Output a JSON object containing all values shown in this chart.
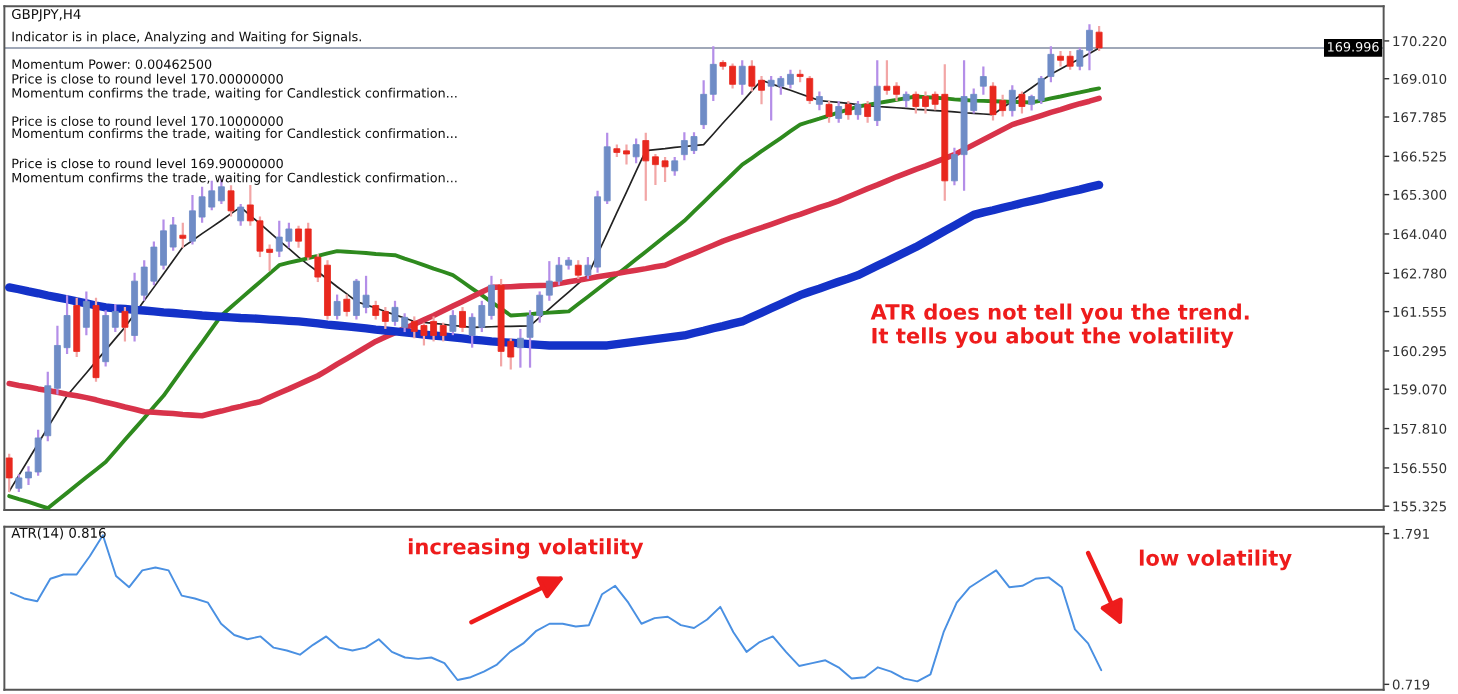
{
  "chart_data": [
    {
      "type": "candlestick",
      "title": "GBPJPY,H4",
      "annotations": [
        "Indicator is in place, Analyzing and Waiting for Signals.",
        "Momentum Power: 0.00462500",
        "Price is close to round level 170.00000000",
        "Momentum confirms the trade, waiting for Candlestick confirmation...",
        "Price is close to round level 170.10000000",
        "Momentum confirms the trade, waiting for Candlestick confirmation...",
        "Price is close to round level 169.90000000",
        "Momentum confirms the trade, waiting for Candlestick confirmation...",
        "ATR does not tell you the trend.\nIt tells you about the volatility"
      ],
      "categories": [
        null,
        null,
        null,
        null,
        null,
        null,
        null,
        null,
        null,
        null,
        null,
        null,
        null,
        null,
        null,
        null,
        null,
        null,
        null,
        null,
        null,
        null,
        null,
        null,
        null,
        null,
        null,
        null,
        null,
        null,
        null,
        null,
        null,
        null,
        null,
        null,
        null,
        null,
        null,
        null,
        null,
        null,
        null,
        null,
        null,
        null,
        null,
        null,
        null,
        null,
        null,
        null,
        null,
        null,
        null,
        null,
        null,
        null,
        null,
        null,
        null,
        null,
        null,
        null,
        null,
        null,
        null,
        null,
        null,
        null,
        null,
        null,
        null,
        null,
        null,
        null,
        null,
        null,
        null,
        null,
        null,
        null,
        null,
        null,
        null,
        null,
        null,
        null,
        null,
        null,
        null,
        null,
        null,
        null,
        null,
        null,
        null,
        null,
        null,
        null,
        null,
        null,
        null,
        null,
        null,
        null,
        null,
        null,
        null,
        null,
        null,
        null,
        null,
        null,
        null,
        null,
        null,
        null,
        null,
        null,
        null,
        null,
        null,
        null,
        null,
        null,
        null,
        null,
        null,
        null,
        null,
        null,
        null,
        null,
        null,
        null,
        null,
        null,
        null,
        null,
        null,
        null,
        null
      ],
      "ohlc": [
        [
          156.87,
          157.0,
          155.78,
          156.23
        ],
        [
          155.9,
          156.35,
          155.78,
          156.23
        ],
        [
          156.23,
          156.6,
          156.0,
          156.42
        ],
        [
          156.42,
          157.77,
          156.3,
          157.51
        ],
        [
          157.58,
          159.63,
          157.4,
          159.18
        ],
        [
          159.1,
          161.1,
          158.9,
          160.47
        ],
        [
          160.4,
          162.08,
          160.2,
          161.43
        ],
        [
          161.75,
          162.0,
          160.1,
          160.28
        ],
        [
          161.05,
          162.2,
          160.8,
          161.88
        ],
        [
          161.75,
          162.0,
          159.31,
          159.44
        ],
        [
          159.95,
          161.6,
          159.8,
          161.43
        ],
        [
          161.05,
          161.8,
          160.9,
          161.56
        ],
        [
          161.56,
          161.7,
          160.6,
          161.05
        ],
        [
          160.79,
          162.8,
          160.6,
          162.53
        ],
        [
          162.08,
          163.2,
          161.9,
          162.98
        ],
        [
          162.53,
          163.8,
          162.4,
          163.62
        ],
        [
          163.04,
          164.5,
          162.9,
          164.14
        ],
        [
          163.62,
          164.58,
          163.5,
          164.33
        ],
        [
          164.0,
          164.4,
          163.6,
          163.9
        ],
        [
          163.81,
          165.29,
          163.7,
          164.78
        ],
        [
          164.58,
          165.55,
          164.4,
          165.23
        ],
        [
          164.9,
          165.74,
          164.8,
          165.42
        ],
        [
          165.1,
          165.8,
          165.0,
          165.55
        ],
        [
          165.42,
          165.6,
          164.6,
          164.78
        ],
        [
          164.46,
          165.0,
          164.3,
          164.9
        ],
        [
          164.97,
          165.61,
          164.3,
          164.46
        ],
        [
          164.46,
          164.6,
          163.3,
          163.49
        ],
        [
          163.55,
          163.7,
          162.85,
          163.45
        ],
        [
          163.49,
          164.46,
          163.3,
          163.94
        ],
        [
          163.81,
          164.4,
          163.6,
          164.2
        ],
        [
          164.2,
          164.3,
          163.6,
          163.81
        ],
        [
          164.2,
          164.4,
          163.2,
          163.3
        ],
        [
          163.3,
          163.4,
          162.5,
          162.66
        ],
        [
          163.04,
          163.2,
          161.3,
          161.43
        ],
        [
          161.43,
          162.1,
          161.3,
          161.88
        ],
        [
          161.95,
          162.1,
          161.4,
          161.56
        ],
        [
          161.43,
          162.6,
          161.3,
          162.53
        ],
        [
          161.69,
          162.7,
          161.5,
          162.08
        ],
        [
          161.75,
          161.9,
          161.3,
          161.43
        ],
        [
          161.56,
          161.7,
          161.0,
          161.24
        ],
        [
          161.24,
          161.9,
          161.1,
          161.69
        ],
        [
          161.05,
          161.5,
          160.9,
          161.37
        ],
        [
          161.24,
          161.4,
          160.7,
          160.92
        ],
        [
          161.11,
          161.2,
          160.47,
          160.79
        ],
        [
          161.24,
          161.4,
          160.6,
          160.79
        ],
        [
          161.11,
          161.2,
          160.6,
          160.79
        ],
        [
          160.92,
          161.6,
          160.8,
          161.43
        ],
        [
          161.56,
          161.7,
          160.9,
          161.05
        ],
        [
          160.79,
          161.5,
          160.4,
          161.37
        ],
        [
          161.05,
          161.9,
          160.9,
          161.75
        ],
        [
          161.43,
          162.7,
          161.3,
          162.4
        ],
        [
          162.4,
          162.6,
          159.8,
          160.28
        ],
        [
          160.6,
          160.7,
          159.7,
          160.1
        ],
        [
          160.4,
          161.0,
          159.76,
          160.7
        ],
        [
          160.73,
          161.6,
          159.76,
          161.43
        ],
        [
          161.43,
          162.2,
          161.2,
          162.08
        ],
        [
          162.08,
          163.17,
          161.9,
          162.53
        ],
        [
          162.53,
          163.3,
          162.4,
          163.04
        ],
        [
          163.04,
          163.3,
          162.9,
          163.2
        ],
        [
          163.04,
          163.2,
          162.6,
          162.72
        ],
        [
          162.72,
          163.3,
          162.6,
          163.04
        ],
        [
          162.98,
          165.42,
          162.8,
          165.23
        ],
        [
          165.1,
          167.28,
          165.0,
          166.83
        ],
        [
          166.77,
          166.9,
          166.5,
          166.65
        ],
        [
          166.7,
          166.9,
          166.26,
          166.6
        ],
        [
          166.51,
          167.1,
          166.3,
          166.9
        ],
        [
          167.03,
          167.28,
          165.1,
          166.38
        ],
        [
          166.51,
          166.6,
          165.61,
          166.26
        ],
        [
          166.38,
          166.5,
          165.7,
          166.19
        ],
        [
          166.06,
          166.5,
          165.9,
          166.38
        ],
        [
          166.58,
          167.3,
          166.4,
          167.03
        ],
        [
          166.71,
          167.3,
          166.6,
          167.16
        ],
        [
          167.54,
          168.96,
          167.4,
          168.51
        ],
        [
          168.51,
          170.05,
          168.3,
          169.47
        ],
        [
          169.53,
          169.6,
          169.3,
          169.41
        ],
        [
          169.41,
          169.5,
          168.7,
          168.83
        ],
        [
          168.83,
          169.6,
          168.5,
          169.41
        ],
        [
          169.41,
          169.6,
          168.6,
          168.77
        ],
        [
          168.96,
          169.1,
          168.19,
          168.64
        ],
        [
          168.77,
          169.1,
          167.67,
          168.96
        ],
        [
          168.77,
          169.1,
          168.5,
          169.02
        ],
        [
          168.83,
          169.3,
          168.7,
          169.15
        ],
        [
          169.15,
          169.3,
          168.9,
          169.08
        ],
        [
          169.02,
          169.1,
          168.2,
          168.31
        ],
        [
          168.19,
          168.6,
          168.0,
          168.44
        ],
        [
          168.19,
          168.3,
          167.6,
          167.8
        ],
        [
          167.74,
          168.3,
          167.6,
          168.12
        ],
        [
          168.19,
          168.3,
          167.7,
          167.86
        ],
        [
          167.86,
          168.3,
          167.7,
          168.19
        ],
        [
          168.19,
          168.3,
          167.6,
          167.8
        ],
        [
          167.67,
          169.6,
          167.5,
          168.77
        ],
        [
          168.77,
          169.6,
          168.5,
          168.64
        ],
        [
          168.77,
          168.9,
          168.3,
          168.51
        ],
        [
          168.31,
          168.6,
          168.1,
          168.51
        ],
        [
          168.51,
          168.6,
          167.9,
          168.12
        ],
        [
          168.44,
          168.6,
          167.9,
          168.12
        ],
        [
          168.51,
          168.6,
          168.0,
          168.19
        ],
        [
          168.51,
          169.47,
          165.1,
          165.74
        ],
        [
          165.74,
          166.8,
          165.6,
          166.58
        ],
        [
          166.58,
          169.6,
          165.42,
          168.44
        ],
        [
          167.99,
          168.7,
          167.9,
          168.51
        ],
        [
          168.77,
          169.4,
          168.5,
          169.08
        ],
        [
          168.77,
          168.9,
          167.67,
          167.86
        ],
        [
          168.31,
          168.5,
          167.8,
          167.99
        ],
        [
          167.99,
          168.8,
          167.8,
          168.64
        ],
        [
          168.51,
          168.6,
          167.9,
          168.12
        ],
        [
          168.19,
          168.5,
          167.99,
          168.44
        ],
        [
          168.31,
          169.1,
          168.2,
          169.02
        ],
        [
          169.08,
          170.05,
          168.9,
          169.79
        ],
        [
          169.73,
          169.9,
          169.4,
          169.6
        ],
        [
          169.73,
          169.9,
          169.3,
          169.41
        ],
        [
          169.41,
          170.0,
          169.28,
          169.92
        ],
        [
          169.92,
          170.75,
          169.28,
          170.56
        ],
        [
          170.5,
          170.7,
          169.9,
          169.996
        ],
        null,
        null,
        null,
        null,
        null,
        null,
        null,
        null,
        null,
        null,
        null,
        null,
        null,
        null,
        null,
        null,
        null,
        null,
        null,
        null,
        null,
        null,
        null,
        null,
        null,
        null,
        null,
        null,
        null
      ],
      "series": [
        {
          "type": "line",
          "color": "#222222",
          "values": [
            155.8,
            156.31,
            156.82,
            157.33,
            157.84,
            158.35,
            158.86,
            159.23,
            159.59,
            159.96,
            160.32,
            160.69,
            161.05,
            161.48,
            161.91,
            162.33,
            162.76,
            163.19,
            163.62,
            163.83,
            164.05,
            164.26,
            164.47,
            164.69,
            164.9,
            164.63,
            164.37,
            164.1,
            163.83,
            163.57,
            163.3,
            163.06,
            162.83,
            162.59,
            162.35,
            162.12,
            161.88,
            161.77,
            161.67,
            161.56,
            161.45,
            161.35,
            161.24,
            161.21,
            161.18,
            161.15,
            161.11,
            161.08,
            161.05,
            161.06,
            161.07,
            161.08,
            161.08,
            161.09,
            161.1,
            161.37,
            161.64,
            161.91,
            162.18,
            162.45,
            162.72,
            163.39,
            164.05,
            164.72,
            165.38,
            166.05,
            166.71,
            166.74,
            166.77,
            166.81,
            166.84,
            166.87,
            166.9,
            167.24,
            167.59,
            167.93,
            168.27,
            168.62,
            168.96,
            168.85,
            168.74,
            168.64,
            168.53,
            168.42,
            168.31,
            168.28,
            168.25,
            168.22,
            168.18,
            168.15,
            168.12,
            168.1,
            168.08,
            168.06,
            168.03,
            168.01,
            167.99,
            167.97,
            167.95,
            167.92,
            167.9,
            167.88,
            167.86,
            168.08,
            168.29,
            168.51,
            168.72,
            168.94,
            169.15,
            169.32,
            169.49,
            169.65,
            169.82,
            169.99,
            null,
            null,
            null,
            null,
            null,
            null,
            null,
            null,
            null,
            null,
            null,
            null,
            null,
            null,
            null,
            null,
            null,
            null,
            null,
            null,
            null,
            null,
            null,
            null,
            null,
            null,
            null,
            null,
            null
          ]
        },
        {
          "type": "line",
          "color": "#2e8a1e",
          "values": [
            155.65,
            155.55,
            155.46,
            155.36,
            155.26,
            155.51,
            155.75,
            156.0,
            156.25,
            156.49,
            156.74,
            157.09,
            157.45,
            157.8,
            158.15,
            158.51,
            158.86,
            159.29,
            159.72,
            160.15,
            160.57,
            161.0,
            161.43,
            161.7,
            161.97,
            162.24,
            162.5,
            162.77,
            163.04,
            163.12,
            163.19,
            163.27,
            163.34,
            163.42,
            163.49,
            163.47,
            163.45,
            163.43,
            163.4,
            163.38,
            163.36,
            163.25,
            163.15,
            163.04,
            162.93,
            162.83,
            162.72,
            162.51,
            162.29,
            162.08,
            161.86,
            161.65,
            161.43,
            161.45,
            161.47,
            161.5,
            161.52,
            161.54,
            161.56,
            161.8,
            162.03,
            162.27,
            162.51,
            162.74,
            162.98,
            163.23,
            163.47,
            163.72,
            163.97,
            164.21,
            164.46,
            164.76,
            165.06,
            165.36,
            165.66,
            165.96,
            166.26,
            166.47,
            166.69,
            166.9,
            167.11,
            167.33,
            167.54,
            167.64,
            167.73,
            167.83,
            167.93,
            168.02,
            168.12,
            168.17,
            168.23,
            168.28,
            168.33,
            168.39,
            168.44,
            168.42,
            168.4,
            168.38,
            168.35,
            168.33,
            168.31,
            168.3,
            168.29,
            168.28,
            168.27,
            168.26,
            168.25,
            168.31,
            168.38,
            168.44,
            168.51,
            168.57,
            168.64,
            168.7,
            null,
            null,
            null,
            null,
            null,
            null,
            null,
            null,
            null,
            null,
            null,
            null,
            null,
            null,
            null,
            null,
            null,
            null,
            null,
            null,
            null,
            null,
            null,
            null,
            null,
            null,
            null,
            null,
            null
          ]
        },
        {
          "type": "line",
          "color": "#d8334a",
          "values": [
            159.25,
            159.19,
            159.14,
            159.08,
            159.03,
            158.97,
            158.91,
            158.86,
            158.8,
            158.73,
            158.65,
            158.58,
            158.5,
            158.43,
            158.35,
            158.33,
            158.31,
            158.29,
            158.26,
            158.24,
            158.22,
            158.3,
            158.37,
            158.45,
            158.52,
            158.6,
            158.67,
            158.81,
            158.95,
            159.08,
            159.22,
            159.36,
            159.5,
            159.68,
            159.87,
            160.05,
            160.23,
            160.42,
            160.6,
            160.74,
            160.88,
            161.02,
            161.15,
            161.29,
            161.43,
            161.58,
            161.73,
            161.88,
            162.03,
            162.18,
            162.33,
            162.34,
            162.35,
            162.37,
            162.38,
            162.39,
            162.4,
            162.45,
            162.51,
            162.56,
            162.61,
            162.67,
            162.72,
            162.77,
            162.83,
            162.88,
            162.93,
            162.99,
            163.04,
            163.17,
            163.3,
            163.42,
            163.55,
            163.68,
            163.81,
            163.92,
            164.03,
            164.14,
            164.24,
            164.35,
            164.46,
            164.57,
            164.67,
            164.78,
            164.89,
            164.99,
            165.1,
            165.23,
            165.36,
            165.49,
            165.61,
            165.74,
            165.87,
            165.99,
            166.11,
            166.22,
            166.34,
            166.46,
            166.58,
            166.74,
            166.9,
            167.06,
            167.22,
            167.38,
            167.54,
            167.64,
            167.73,
            167.83,
            167.93,
            168.02,
            168.12,
            168.21,
            168.29,
            168.38,
            null,
            null,
            null,
            null,
            null,
            null,
            null,
            null,
            null,
            null,
            null,
            null,
            null,
            null,
            null,
            null,
            null,
            null,
            null,
            null,
            null,
            null,
            null,
            null,
            null,
            null,
            null,
            null,
            null
          ]
        },
        {
          "type": "line",
          "color": "#1432c8",
          "values": [
            162.33,
            162.27,
            162.2,
            162.14,
            162.07,
            162.01,
            161.95,
            161.88,
            161.82,
            161.75,
            161.69,
            161.66,
            161.64,
            161.61,
            161.59,
            161.56,
            161.53,
            161.51,
            161.48,
            161.46,
            161.43,
            161.41,
            161.39,
            161.37,
            161.35,
            161.34,
            161.32,
            161.3,
            161.28,
            161.26,
            161.24,
            161.21,
            161.18,
            161.14,
            161.11,
            161.08,
            161.05,
            161.02,
            160.98,
            160.95,
            160.92,
            160.89,
            160.86,
            160.82,
            160.79,
            160.76,
            160.73,
            160.7,
            160.66,
            160.63,
            160.6,
            160.58,
            160.56,
            160.54,
            160.51,
            160.49,
            160.47,
            160.47,
            160.47,
            160.47,
            160.47,
            160.47,
            160.47,
            160.51,
            160.55,
            160.59,
            160.63,
            160.67,
            160.71,
            160.75,
            160.79,
            160.87,
            160.94,
            161.02,
            161.09,
            161.17,
            161.24,
            161.38,
            161.52,
            161.66,
            161.8,
            161.94,
            162.08,
            162.19,
            162.29,
            162.4,
            162.51,
            162.61,
            162.72,
            162.87,
            163.02,
            163.17,
            163.32,
            163.47,
            163.62,
            163.79,
            163.96,
            164.14,
            164.31,
            164.48,
            164.65,
            164.73,
            164.8,
            164.88,
            164.95,
            165.03,
            165.1,
            165.17,
            165.25,
            165.32,
            165.39,
            165.46,
            165.54,
            165.61,
            null,
            null,
            null,
            null,
            null,
            null,
            null,
            null,
            null,
            null,
            null,
            null,
            null,
            null,
            null,
            null,
            null,
            null,
            null,
            null,
            null,
            null,
            null,
            null,
            null,
            null,
            null,
            null,
            null
          ]
        }
      ],
      "ylim": [
        155.2,
        171.33
      ],
      "yticks": [
        {
          "value": 155.325,
          "label": "155.325"
        },
        {
          "value": 156.55,
          "label": "156.550"
        },
        {
          "value": 157.81,
          "label": "157.810"
        },
        {
          "value": 159.07,
          "label": "159.070"
        },
        {
          "value": 160.295,
          "label": "160.295"
        },
        {
          "value": 161.555,
          "label": "161.555"
        },
        {
          "value": 162.78,
          "label": "162.780"
        },
        {
          "value": 164.04,
          "label": "164.040"
        },
        {
          "value": 165.3,
          "label": "165.300"
        },
        {
          "value": 166.525,
          "label": "166.525"
        },
        {
          "value": 167.785,
          "label": "167.785"
        },
        {
          "value": 169.01,
          "label": "169.010"
        },
        {
          "value": 170.22,
          "label": "170.220"
        }
      ],
      "ref_lines": [
        {
          "axis": "y",
          "value": 169.996,
          "label": "169.996",
          "color": "#a0a8b8"
        }
      ],
      "tick_labels": "y",
      "grid": false,
      "legend": false
    },
    {
      "type": "line",
      "title": "ATR(14) 0.816",
      "annotations": [
        "increasing volatility",
        "low volatility"
      ],
      "categories": [
        null,
        null,
        null,
        null,
        null,
        null,
        null,
        null,
        null,
        null,
        null,
        null,
        null,
        null,
        null,
        null,
        null,
        null,
        null,
        null,
        null,
        null,
        null,
        null,
        null,
        null,
        null,
        null,
        null,
        null,
        null,
        null,
        null,
        null,
        null,
        null,
        null,
        null,
        null,
        null,
        null,
        null,
        null,
        null,
        null,
        null,
        null,
        null,
        null,
        null,
        null,
        null,
        null,
        null,
        null,
        null,
        null,
        null,
        null,
        null,
        null,
        null,
        null,
        null,
        null,
        null,
        null,
        null,
        null,
        null,
        null,
        null,
        null,
        null,
        null,
        null,
        null,
        null,
        null,
        null,
        null,
        null,
        null,
        null,
        null,
        null,
        null,
        null,
        null,
        null,
        null,
        null,
        null,
        null,
        null,
        null,
        null,
        null,
        null,
        null,
        null,
        null,
        null,
        null,
        null
      ],
      "series": [
        {
          "color": "#4a90e2",
          "values": [
            1.37,
            1.33,
            1.31,
            1.47,
            1.5,
            1.5,
            1.63,
            1.78,
            1.49,
            1.41,
            1.53,
            1.55,
            1.53,
            1.35,
            1.33,
            1.3,
            1.15,
            1.07,
            1.04,
            1.06,
            0.98,
            0.96,
            0.93,
            1.0,
            1.06,
            0.98,
            0.96,
            0.98,
            1.04,
            0.95,
            0.91,
            0.9,
            0.91,
            0.87,
            0.75,
            0.77,
            0.81,
            0.86,
            0.95,
            1.01,
            1.1,
            1.15,
            1.15,
            1.13,
            1.14,
            1.36,
            1.42,
            1.3,
            1.15,
            1.19,
            1.2,
            1.14,
            1.12,
            1.18,
            1.27,
            1.09,
            0.95,
            1.02,
            1.06,
            0.95,
            0.85,
            0.87,
            0.89,
            0.84,
            0.76,
            0.77,
            0.84,
            0.81,
            0.76,
            0.74,
            0.79,
            1.09,
            1.3,
            1.41,
            1.47,
            1.53,
            1.41,
            1.42,
            1.47,
            1.48,
            1.41,
            1.11,
            1.01,
            0.82,
            null,
            null,
            null,
            null,
            null,
            null,
            null,
            null,
            null,
            null,
            null,
            null,
            null,
            null,
            null,
            null,
            null,
            null,
            null,
            null,
            null
          ]
        }
      ],
      "ylim": [
        0.68,
        1.84
      ],
      "yticks": [
        0.719,
        1.791
      ],
      "tick_labels": "y",
      "grid": false,
      "legend": false
    }
  ]
}
